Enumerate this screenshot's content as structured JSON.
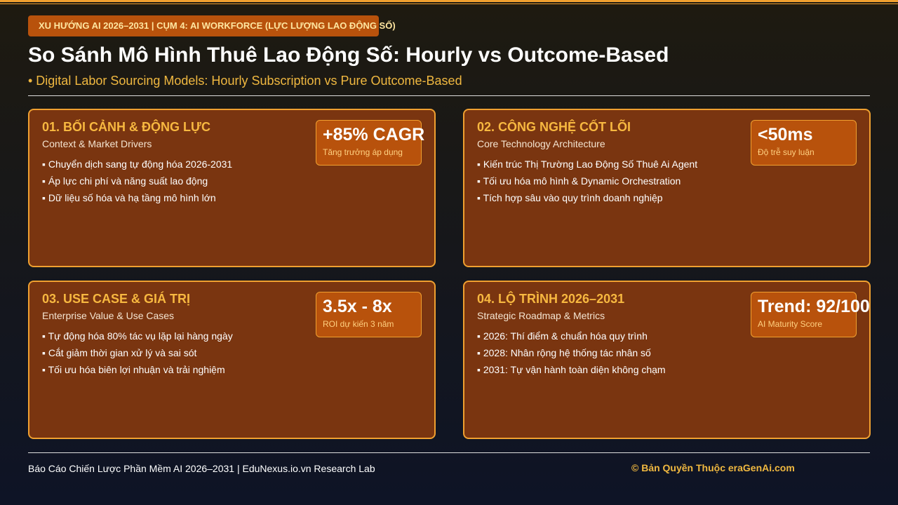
{
  "header": {
    "tag": "XU HƯỚNG AI 2026–2031 | CỤM 4: AI WORKFORCE (LỰC LƯỢNG LAO ĐỘNG SỐ)",
    "title": "So Sánh Mô Hình Thuê Lao Động Số: Hourly vs Outcome-Based",
    "subtitle": "• Digital Labor Sourcing Models: Hourly Subscription vs Pure Outcome-Based"
  },
  "cards": [
    {
      "title": "01. BỐI CẢNH & ĐỘNG LỰC",
      "subtitle": "Context & Market Drivers",
      "metric": "+85% CAGR",
      "metric_label": "Tăng trưởng áp dụng",
      "items": [
        "▪ Chuyển dịch sang tự động hóa 2026-2031",
        "▪ Áp lực chi phí và năng suất lao động",
        "▪ Dữ liệu số hóa và hạ tầng mô hình lớn"
      ]
    },
    {
      "title": "02. CÔNG NGHỆ CỐT LÕI",
      "subtitle": "Core Technology Architecture",
      "metric": "<50ms",
      "metric_label": "Độ trễ suy luận",
      "items": [
        "▪ Kiến trúc Thị Trường Lao Động Số Thuê Ai Agent",
        "▪ Tối ưu hóa mô hình & Dynamic Orchestration",
        "▪ Tích hợp sâu vào quy trình doanh nghiệp"
      ]
    },
    {
      "title": "03. USE CASE & GIÁ TRỊ",
      "subtitle": "Enterprise Value & Use Cases",
      "metric": "3.5x - 8x",
      "metric_label": "ROI dự kiến 3 năm",
      "items": [
        "▪ Tự động hóa 80% tác vụ lặp lại hàng ngày",
        "▪ Cắt giảm thời gian xử lý và sai sót",
        "▪ Tối ưu hóa biên lợi nhuận và trải nghiệm"
      ]
    },
    {
      "title": "04. LỘ TRÌNH 2026–2031",
      "subtitle": "Strategic Roadmap & Metrics",
      "metric": "Trend: 92/100",
      "metric_label": "AI Maturity Score",
      "items": [
        "▪ 2026: Thí điểm & chuẩn hóa quy trình",
        "▪ 2028: Nhân rộng hệ thống tác nhân số",
        "▪ 2031: Tự vận hành toàn diện không chạm"
      ]
    }
  ],
  "footer": {
    "left": "Báo Cáo Chiến Lược Phần Mềm AI 2026–2031 | EduNexus.io.vn Research Lab",
    "right": "© Bản Quyền Thuộc eraGenAi.com"
  }
}
